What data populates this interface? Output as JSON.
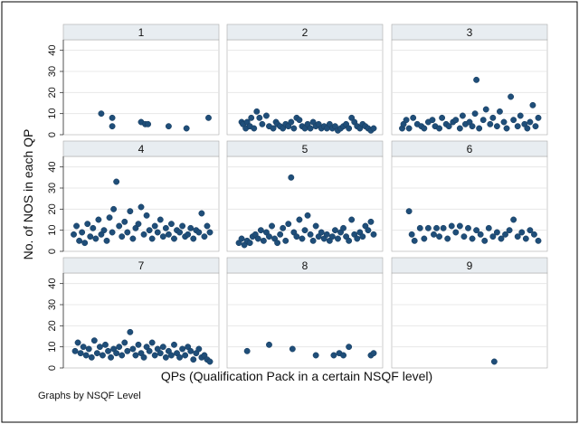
{
  "chart_data": {
    "type": "scatter",
    "layout": "small-multiples 3x3 grid",
    "xlabel": "QPs (Qualification Pack in a certain NSQF level)",
    "ylabel": "No. of NOS in each QP",
    "note": "Graphs by NSQF Level",
    "ylim": [
      0,
      45
    ],
    "yticks": [
      0,
      10,
      20,
      30,
      40
    ],
    "xlim": [
      0,
      100
    ],
    "x_axis_ticks": "none",
    "grid": true,
    "marker_color": "#1f4e79",
    "panel_header_color": "#e8edf1",
    "panels": [
      {
        "label": "1",
        "points": [
          [
            21,
            10
          ],
          [
            29,
            8
          ],
          [
            29,
            4
          ],
          [
            50,
            6
          ],
          [
            53,
            5
          ],
          [
            55,
            5
          ],
          [
            70,
            4
          ],
          [
            83,
            3
          ],
          [
            99,
            8
          ]
        ]
      },
      {
        "label": "2",
        "points": [
          [
            4,
            6
          ],
          [
            5,
            5
          ],
          [
            7,
            3
          ],
          [
            8,
            6
          ],
          [
            10,
            4
          ],
          [
            11,
            8
          ],
          [
            13,
            3
          ],
          [
            15,
            11
          ],
          [
            17,
            8
          ],
          [
            19,
            5
          ],
          [
            22,
            9
          ],
          [
            24,
            4
          ],
          [
            27,
            3
          ],
          [
            29,
            6
          ],
          [
            30,
            5
          ],
          [
            32,
            4
          ],
          [
            34,
            3
          ],
          [
            36,
            5
          ],
          [
            38,
            4
          ],
          [
            40,
            6
          ],
          [
            42,
            3
          ],
          [
            44,
            8
          ],
          [
            46,
            7
          ],
          [
            48,
            4
          ],
          [
            50,
            3
          ],
          [
            52,
            5
          ],
          [
            54,
            3
          ],
          [
            56,
            6
          ],
          [
            58,
            4
          ],
          [
            60,
            5
          ],
          [
            62,
            3
          ],
          [
            64,
            4
          ],
          [
            66,
            3
          ],
          [
            68,
            5
          ],
          [
            70,
            3
          ],
          [
            72,
            4
          ],
          [
            74,
            2
          ],
          [
            76,
            3
          ],
          [
            78,
            4
          ],
          [
            80,
            5
          ],
          [
            82,
            3
          ],
          [
            84,
            8
          ],
          [
            86,
            6
          ],
          [
            88,
            4
          ],
          [
            90,
            3
          ],
          [
            92,
            5
          ],
          [
            94,
            4
          ],
          [
            96,
            3
          ],
          [
            98,
            2
          ],
          [
            100,
            3
          ]
        ]
      },
      {
        "label": "3",
        "points": [
          [
            1,
            3
          ],
          [
            2,
            5
          ],
          [
            4,
            7
          ],
          [
            6,
            3
          ],
          [
            9,
            8
          ],
          [
            12,
            5
          ],
          [
            15,
            4
          ],
          [
            17,
            3
          ],
          [
            20,
            6
          ],
          [
            23,
            7
          ],
          [
            25,
            4
          ],
          [
            28,
            3
          ],
          [
            30,
            8
          ],
          [
            33,
            5
          ],
          [
            35,
            4
          ],
          [
            38,
            6
          ],
          [
            40,
            7
          ],
          [
            43,
            3
          ],
          [
            45,
            9
          ],
          [
            47,
            5
          ],
          [
            50,
            6
          ],
          [
            52,
            4
          ],
          [
            54,
            10
          ],
          [
            55,
            26
          ],
          [
            57,
            3
          ],
          [
            60,
            7
          ],
          [
            62,
            12
          ],
          [
            65,
            5
          ],
          [
            67,
            8
          ],
          [
            70,
            4
          ],
          [
            72,
            11
          ],
          [
            75,
            6
          ],
          [
            77,
            3
          ],
          [
            80,
            18
          ],
          [
            82,
            7
          ],
          [
            85,
            4
          ],
          [
            87,
            9
          ],
          [
            90,
            5
          ],
          [
            92,
            3
          ],
          [
            94,
            6
          ],
          [
            96,
            14
          ],
          [
            98,
            4
          ],
          [
            100,
            8
          ]
        ]
      },
      {
        "label": "4",
        "points": [
          [
            1,
            8
          ],
          [
            3,
            12
          ],
          [
            5,
            5
          ],
          [
            7,
            9
          ],
          [
            9,
            4
          ],
          [
            11,
            13
          ],
          [
            13,
            7
          ],
          [
            15,
            11
          ],
          [
            17,
            6
          ],
          [
            19,
            15
          ],
          [
            21,
            8
          ],
          [
            23,
            10
          ],
          [
            25,
            5
          ],
          [
            27,
            16
          ],
          [
            29,
            9
          ],
          [
            30,
            20
          ],
          [
            32,
            33
          ],
          [
            34,
            12
          ],
          [
            36,
            7
          ],
          [
            38,
            14
          ],
          [
            40,
            9
          ],
          [
            42,
            19
          ],
          [
            44,
            6
          ],
          [
            46,
            11
          ],
          [
            48,
            13
          ],
          [
            50,
            21
          ],
          [
            52,
            8
          ],
          [
            54,
            17
          ],
          [
            56,
            10
          ],
          [
            58,
            6
          ],
          [
            60,
            12
          ],
          [
            62,
            9
          ],
          [
            64,
            15
          ],
          [
            66,
            7
          ],
          [
            68,
            11
          ],
          [
            70,
            8
          ],
          [
            72,
            13
          ],
          [
            74,
            6
          ],
          [
            76,
            10
          ],
          [
            78,
            9
          ],
          [
            80,
            12
          ],
          [
            82,
            7
          ],
          [
            84,
            8
          ],
          [
            86,
            11
          ],
          [
            88,
            6
          ],
          [
            90,
            10
          ],
          [
            92,
            9
          ],
          [
            94,
            18
          ],
          [
            96,
            7
          ],
          [
            98,
            12
          ],
          [
            100,
            9
          ]
        ]
      },
      {
        "label": "5",
        "points": [
          [
            2,
            4
          ],
          [
            4,
            6
          ],
          [
            6,
            3
          ],
          [
            8,
            5
          ],
          [
            10,
            4
          ],
          [
            12,
            7
          ],
          [
            14,
            8
          ],
          [
            16,
            6
          ],
          [
            18,
            10
          ],
          [
            20,
            5
          ],
          [
            22,
            9
          ],
          [
            24,
            7
          ],
          [
            26,
            12
          ],
          [
            28,
            6
          ],
          [
            30,
            4
          ],
          [
            32,
            8
          ],
          [
            34,
            11
          ],
          [
            36,
            5
          ],
          [
            38,
            13
          ],
          [
            40,
            35
          ],
          [
            42,
            9
          ],
          [
            44,
            7
          ],
          [
            46,
            15
          ],
          [
            48,
            6
          ],
          [
            50,
            10
          ],
          [
            52,
            17
          ],
          [
            54,
            8
          ],
          [
            56,
            5
          ],
          [
            58,
            12
          ],
          [
            60,
            7
          ],
          [
            62,
            9
          ],
          [
            64,
            6
          ],
          [
            66,
            8
          ],
          [
            68,
            5
          ],
          [
            70,
            7
          ],
          [
            72,
            10
          ],
          [
            74,
            6
          ],
          [
            76,
            9
          ],
          [
            78,
            11
          ],
          [
            80,
            7
          ],
          [
            82,
            5
          ],
          [
            84,
            15
          ],
          [
            86,
            8
          ],
          [
            88,
            6
          ],
          [
            90,
            9
          ],
          [
            92,
            7
          ],
          [
            94,
            12
          ],
          [
            96,
            10
          ],
          [
            98,
            14
          ],
          [
            100,
            8
          ]
        ]
      },
      {
        "label": "6",
        "points": [
          [
            6,
            19
          ],
          [
            8,
            8
          ],
          [
            10,
            5
          ],
          [
            14,
            11
          ],
          [
            17,
            6
          ],
          [
            20,
            11
          ],
          [
            24,
            8
          ],
          [
            26,
            11
          ],
          [
            28,
            7
          ],
          [
            31,
            11
          ],
          [
            34,
            6
          ],
          [
            37,
            12
          ],
          [
            40,
            9
          ],
          [
            43,
            12
          ],
          [
            46,
            7
          ],
          [
            49,
            11
          ],
          [
            52,
            6
          ],
          [
            55,
            10
          ],
          [
            58,
            8
          ],
          [
            61,
            5
          ],
          [
            64,
            11
          ],
          [
            67,
            7
          ],
          [
            70,
            9
          ],
          [
            73,
            6
          ],
          [
            76,
            8
          ],
          [
            79,
            10
          ],
          [
            82,
            15
          ],
          [
            85,
            7
          ],
          [
            88,
            9
          ],
          [
            91,
            6
          ],
          [
            94,
            10
          ],
          [
            97,
            8
          ],
          [
            100,
            5
          ]
        ]
      },
      {
        "label": "7",
        "points": [
          [
            2,
            8
          ],
          [
            4,
            12
          ],
          [
            6,
            7
          ],
          [
            8,
            10
          ],
          [
            10,
            6
          ],
          [
            12,
            9
          ],
          [
            14,
            5
          ],
          [
            16,
            13
          ],
          [
            18,
            7
          ],
          [
            20,
            10
          ],
          [
            22,
            6
          ],
          [
            24,
            11
          ],
          [
            26,
            8
          ],
          [
            28,
            5
          ],
          [
            30,
            9
          ],
          [
            32,
            7
          ],
          [
            34,
            10
          ],
          [
            36,
            6
          ],
          [
            38,
            12
          ],
          [
            40,
            8
          ],
          [
            42,
            17
          ],
          [
            44,
            9
          ],
          [
            46,
            6
          ],
          [
            48,
            11
          ],
          [
            50,
            7
          ],
          [
            52,
            5
          ],
          [
            54,
            10
          ],
          [
            56,
            8
          ],
          [
            58,
            12
          ],
          [
            60,
            6
          ],
          [
            62,
            9
          ],
          [
            64,
            7
          ],
          [
            66,
            10
          ],
          [
            68,
            5
          ],
          [
            70,
            8
          ],
          [
            72,
            6
          ],
          [
            74,
            11
          ],
          [
            76,
            7
          ],
          [
            78,
            5
          ],
          [
            80,
            9
          ],
          [
            82,
            6
          ],
          [
            84,
            10
          ],
          [
            86,
            8
          ],
          [
            88,
            4
          ],
          [
            90,
            7
          ],
          [
            92,
            9
          ],
          [
            94,
            5
          ],
          [
            96,
            6
          ],
          [
            98,
            4
          ],
          [
            100,
            3
          ]
        ]
      },
      {
        "label": "8",
        "points": [
          [
            8,
            8
          ],
          [
            24,
            11
          ],
          [
            41,
            9
          ],
          [
            58,
            6
          ],
          [
            71,
            6
          ],
          [
            75,
            7
          ],
          [
            78,
            6
          ],
          [
            82,
            10
          ],
          [
            98,
            6
          ],
          [
            100,
            7
          ]
        ]
      },
      {
        "label": "9",
        "points": [
          [
            68,
            3
          ]
        ]
      }
    ]
  }
}
